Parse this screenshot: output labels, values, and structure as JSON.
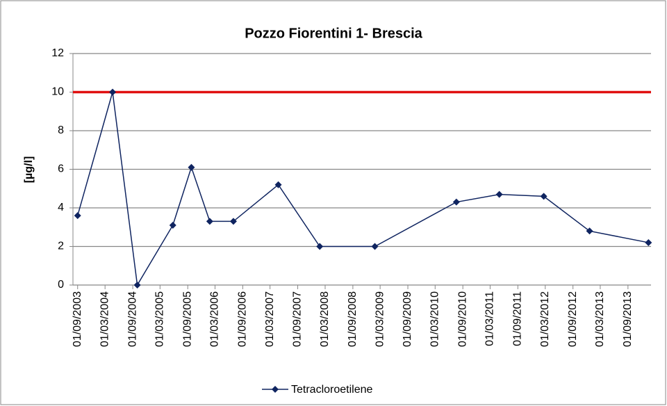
{
  "chart_data": {
    "type": "line",
    "title": "Pozzo Fiorentini 1- Brescia",
    "y_label": "[µg/l]",
    "x": [
      "2003-09-01",
      "2004-04-20",
      "2004-10-01",
      "2005-05-25",
      "2005-09-25",
      "2006-01-25",
      "2006-07-01",
      "2007-04-25",
      "2008-01-25",
      "2009-01-25",
      "2010-07-20",
      "2011-05-01",
      "2012-02-20",
      "2012-12-20",
      "2014-01-15"
    ],
    "series": [
      {
        "name": "Tetracloroetilene",
        "color": "#0f2460",
        "values": [
          3.6,
          10,
          0,
          3.1,
          6.1,
          3.3,
          3.3,
          5.2,
          2,
          2,
          4.3,
          4.7,
          4.6,
          2.8,
          2.2
        ]
      }
    ],
    "threshold": {
      "value": 10,
      "color": "#e01010"
    },
    "xlim": [
      "2003-08-01",
      "2014-02-01"
    ],
    "xticks": [
      {
        "value": "2003-09-01",
        "label": "01/09/2003"
      },
      {
        "value": "2004-03-01",
        "label": "01/03/2004"
      },
      {
        "value": "2004-09-01",
        "label": "01/09/2004"
      },
      {
        "value": "2005-03-01",
        "label": "01/03/2005"
      },
      {
        "value": "2005-09-01",
        "label": "01/09/2005"
      },
      {
        "value": "2006-03-01",
        "label": "01/03/2006"
      },
      {
        "value": "2006-09-01",
        "label": "01/09/2006"
      },
      {
        "value": "2007-03-01",
        "label": "01/03/2007"
      },
      {
        "value": "2007-09-01",
        "label": "01/09/2007"
      },
      {
        "value": "2008-03-01",
        "label": "01/03/2008"
      },
      {
        "value": "2008-09-01",
        "label": "01/09/2008"
      },
      {
        "value": "2009-03-01",
        "label": "01/03/2009"
      },
      {
        "value": "2009-09-01",
        "label": "01/09/2009"
      },
      {
        "value": "2010-03-01",
        "label": "01/03/2010"
      },
      {
        "value": "2010-09-01",
        "label": "01/09/2010"
      },
      {
        "value": "2011-03-01",
        "label": "01/03/2011"
      },
      {
        "value": "2011-09-01",
        "label": "01/09/2011"
      },
      {
        "value": "2012-03-01",
        "label": "01/03/2012"
      },
      {
        "value": "2012-09-01",
        "label": "01/09/2012"
      },
      {
        "value": "2013-03-01",
        "label": "01/03/2013"
      },
      {
        "value": "2013-09-01",
        "label": "01/09/2013"
      }
    ],
    "ylim": [
      0,
      12
    ],
    "yticks": [
      0,
      2,
      4,
      6,
      8,
      10,
      12
    ],
    "grid": true,
    "legend": "bottom"
  }
}
